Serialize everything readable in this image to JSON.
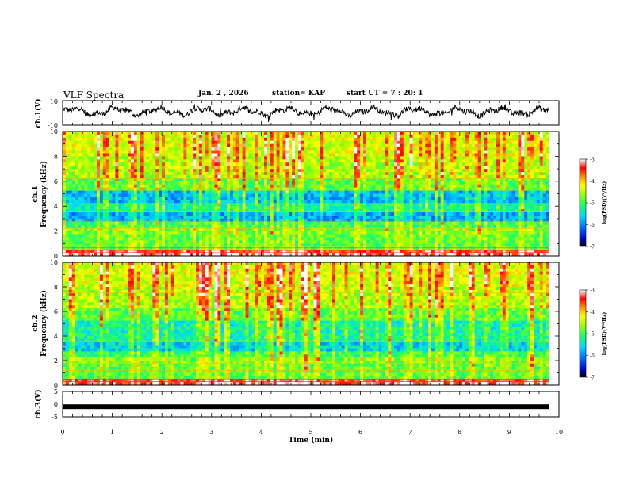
{
  "header": {
    "title": "VLF Spectra",
    "date": "Jan. 2 , 2026",
    "station": "station= KAP",
    "start": "start UT = 7 : 20: 1"
  },
  "chart_data": [
    {
      "type": "line",
      "panel": "ch.1 waveform",
      "ylabel": "ch.1(V)",
      "ylim": [
        -10,
        10
      ],
      "yticks": [
        "10",
        "-10"
      ],
      "xlim": [
        0,
        10
      ]
    },
    {
      "type": "heatmap",
      "panel": "ch.1 spectrogram",
      "ylabel_line1": "ch.1",
      "ylabel_line2": "Frequency (kHz)",
      "ylim": [
        0,
        10
      ],
      "yticks": [
        "0",
        "2",
        "4",
        "6",
        "8",
        "10"
      ],
      "xlim": [
        0,
        10
      ],
      "colorbar": {
        "label": "log(PSD)(V²/Hz)",
        "range": [
          -7,
          -3
        ],
        "ticks": [
          "-3",
          "-4",
          "-5",
          "-6",
          "-7"
        ]
      }
    },
    {
      "type": "heatmap",
      "panel": "ch.2 spectrogram",
      "ylabel_line1": "ch.2",
      "ylabel_line2": "Frequency (kHz)",
      "ylim": [
        0,
        10
      ],
      "yticks": [
        "0",
        "2",
        "4",
        "6",
        "8",
        "10"
      ],
      "xlim": [
        0,
        10
      ],
      "colorbar": {
        "label": "log(PSD)(V²/Hz)",
        "range": [
          -7,
          -3
        ],
        "ticks": [
          "-3",
          "-4",
          "-5",
          "-6",
          "-7"
        ]
      }
    },
    {
      "type": "line",
      "panel": "ch.3 signal",
      "ylabel": "ch.3(V)",
      "ylim": [
        -5,
        5
      ],
      "yticks": [
        "5",
        "0",
        "-5"
      ],
      "xlim": [
        0,
        10
      ],
      "xlabel": "Time (min)",
      "xticks": [
        "0",
        "1",
        "2",
        "3",
        "4",
        "5",
        "6",
        "7",
        "8",
        "9",
        "10"
      ],
      "level_value": -1,
      "data_end_min": 9.8
    }
  ]
}
